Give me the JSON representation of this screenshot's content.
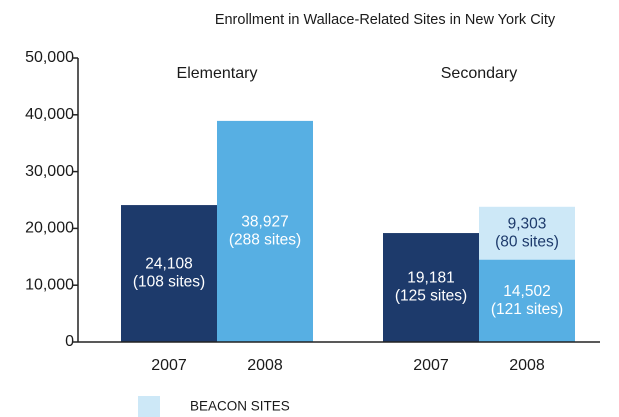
{
  "chart_data": {
    "type": "bar",
    "title": "Enrollment in Wallace-Related Sites in New York City",
    "groups": [
      "Elementary",
      "Secondary"
    ],
    "categories": [
      "2007",
      "2008",
      "2007",
      "2008"
    ],
    "stacked": true,
    "series": [
      {
        "colors": [
          "#1d3a6b",
          "#57afe3",
          "#1d3a6b",
          "#57afe3"
        ],
        "values": [
          24108,
          38927,
          19181,
          14502
        ],
        "value_labels": [
          "24,108",
          "38,927",
          "19,181",
          "14,502"
        ],
        "site_labels": [
          "(108 sites)",
          "(288 sites)",
          "(125 sites)",
          "(121 sites)"
        ]
      },
      {
        "name": "BEACON SITES",
        "color": "#cde8f7",
        "values": [
          null,
          null,
          null,
          9303
        ],
        "value_labels": [
          null,
          null,
          null,
          "9,303"
        ],
        "site_labels": [
          null,
          null,
          null,
          "(80 sites)"
        ]
      }
    ],
    "ylim": [
      0,
      50000
    ],
    "yticks": [
      0,
      {
        "value": 10000,
        "label": "10,000"
      },
      {
        "value": 20000,
        "label": "20,000"
      },
      {
        "value": 30000,
        "label": "30,000"
      },
      {
        "value": 40000,
        "label": "40,000"
      },
      {
        "value": 50000,
        "label": "50,000"
      }
    ]
  }
}
